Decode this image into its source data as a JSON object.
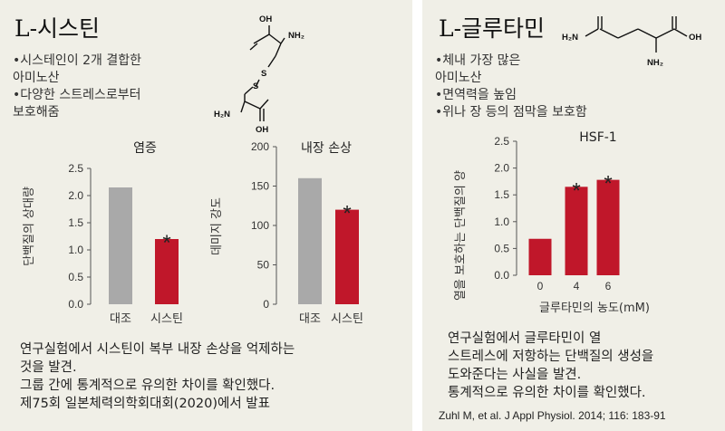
{
  "left": {
    "title": "L-시스틴",
    "bullets": [
      "•시스테인이 2개 결합한",
      "아미노산",
      "•다양한 스트레스로부터",
      "보호해줌"
    ],
    "molecule": {
      "oh": "OH",
      "nh2_top": "NH₂",
      "s1": "S",
      "s2": "S",
      "nh2_bottom": "H₂N",
      "oh_bottom": "OH"
    },
    "note": [
      "연구실험에서 시스틴이 복부 내장 손상을 억제하는",
      "것을 발견.",
      "그룹 간에 통계적으로 유의한 차이를 확인했다.",
      "제75회 일본체력의학회대회(2020)에서 발표"
    ]
  },
  "right": {
    "title": "L-글루타민",
    "bullets": [
      "•체내 가장 많은",
      "아미노산",
      "•면역력을 높임",
      "•위나 장 등의 점막을 보호함"
    ],
    "molecule": {
      "h2n": "H₂N",
      "oh": "OH",
      "nh2": "NH₂"
    },
    "note": [
      "연구실험에서 글루타민이 열",
      "스트레스에 저항하는 단백질의 생성을",
      "도와준다는 사실을 발견.",
      "통계적으로 유의한 차이를 확인했다."
    ],
    "citation": "Zuhl M, et al. J Appl Physiol. 2014; 116: 183-91"
  },
  "chart_data": [
    {
      "type": "bar",
      "title": "염증",
      "ylabel": "단백질의 상대량",
      "categories": [
        "대조",
        "시스틴"
      ],
      "values": [
        2.15,
        1.2
      ],
      "yticks": [
        "0.0",
        "0.5",
        "1.0",
        "1.5",
        "2.0",
        "2.5"
      ],
      "ylim": [
        0,
        2.5
      ],
      "significance": [
        "",
        "*"
      ],
      "colors": [
        "#a9a9a9",
        "#c0172a"
      ]
    },
    {
      "type": "bar",
      "title": "내장 손상",
      "ylabel": "데미지 강도",
      "categories": [
        "대조",
        "시스틴"
      ],
      "values": [
        160,
        120
      ],
      "yticks": [
        "0",
        "50",
        "100",
        "150",
        "200"
      ],
      "ylim": [
        0,
        200
      ],
      "significance": [
        "",
        "*"
      ],
      "colors": [
        "#a9a9a9",
        "#c0172a"
      ]
    },
    {
      "type": "bar",
      "title": "HSF-1",
      "ylabel": "열을 보호하는 단백질의 양",
      "xlabel": "글루타민의 농도(mM)",
      "categories": [
        "0",
        "4",
        "6"
      ],
      "values": [
        0.68,
        1.65,
        1.78
      ],
      "yticks": [
        "0.0",
        "0.5",
        "1.0",
        "1.5",
        "2.0",
        "2.5"
      ],
      "ylim": [
        0,
        2.5
      ],
      "significance": [
        "",
        "*",
        "*"
      ],
      "colors": [
        "#c0172a",
        "#c0172a",
        "#c0172a"
      ]
    }
  ]
}
